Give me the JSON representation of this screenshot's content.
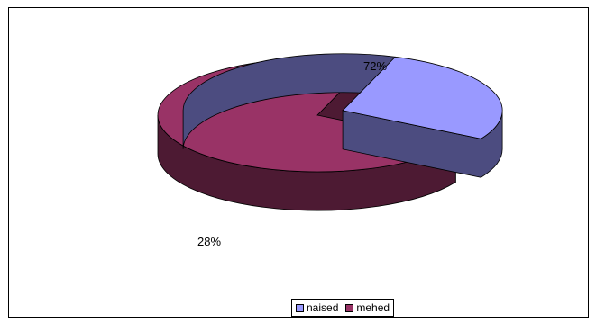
{
  "chart_data": {
    "type": "pie",
    "categories": [
      "naised",
      "mehed"
    ],
    "values": [
      28,
      72
    ],
    "data_labels": [
      "28%",
      "72%"
    ],
    "legend_position": "bottom",
    "style": "3d-exploded",
    "colors": {
      "naised_top": "#9999ff",
      "naised_side": "#4c4c80",
      "mehed_top": "#993366",
      "mehed_side": "#4d1a33"
    }
  }
}
